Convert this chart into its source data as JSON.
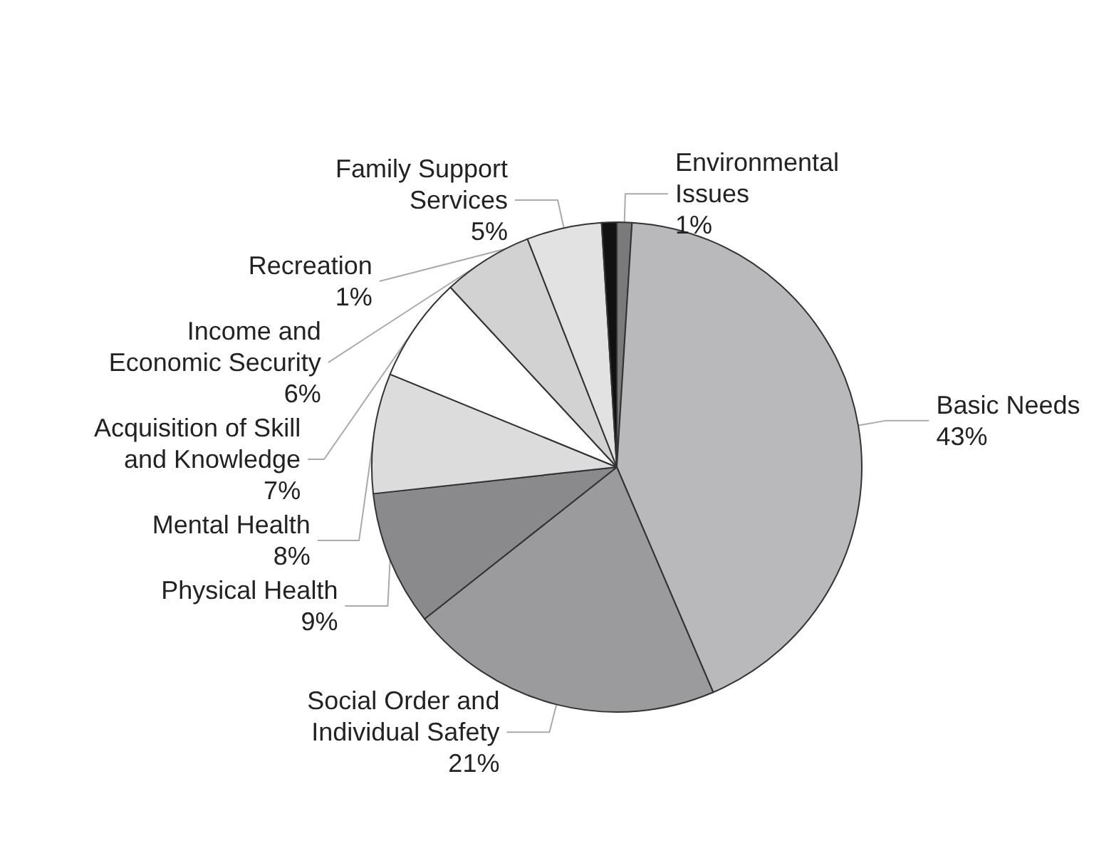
{
  "chart_data": {
    "type": "pie",
    "categories": [
      "Environmental\nIssues",
      "Basic Needs",
      "Social Order and\nIndividual Safety",
      "Physical Health",
      "Mental Health",
      "Acquisition of Skill\nand Knowledge",
      "Income and\nEconomic Security",
      "Family Support\nServices",
      "Recreation"
    ],
    "values": [
      1,
      43,
      21,
      9,
      8,
      7,
      6,
      5,
      1
    ],
    "value_labels": [
      "1%",
      "43%",
      "21%",
      "9%",
      "8%",
      "7%",
      "6%",
      "5%",
      "1%"
    ],
    "colors": [
      "#7a7a7a",
      "#b9b9bc",
      "#9b9b9e",
      "#8a8a8d",
      "#dcdcdc",
      "#ffffff",
      "#d2d2d2",
      "#e2e2e2",
      "#111111"
    ],
    "legend": false
  }
}
